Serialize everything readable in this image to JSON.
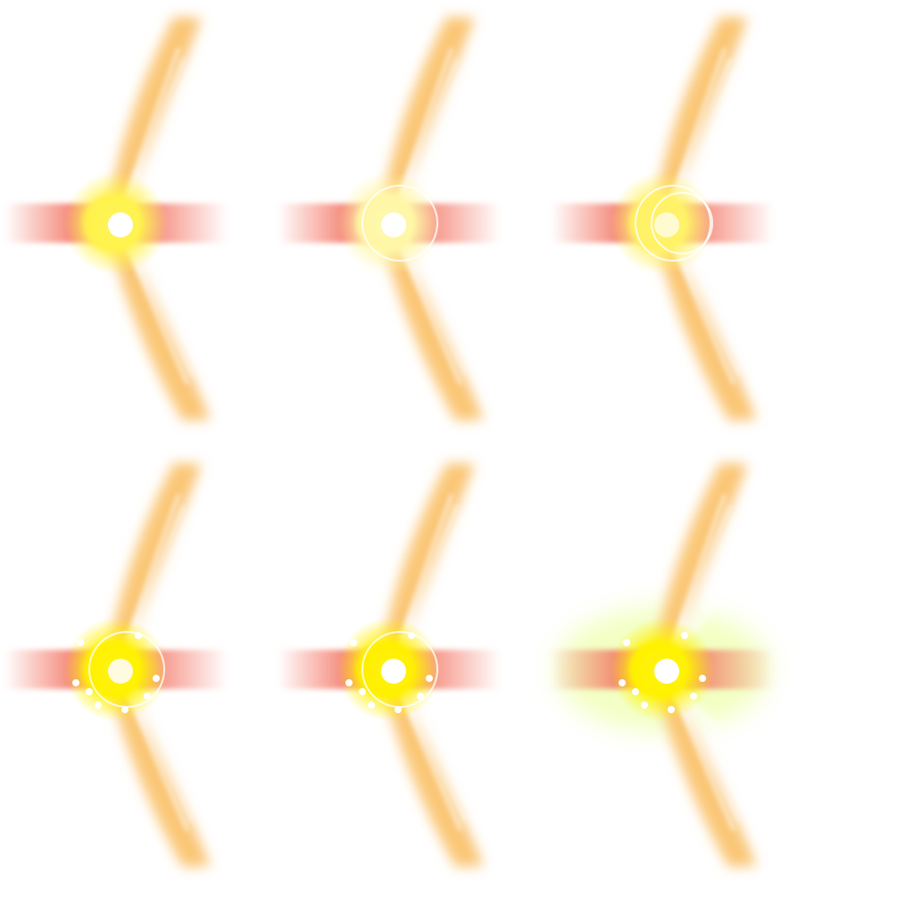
{
  "sprite_sheet": {
    "frames": [
      {
        "index": 1,
        "glow_color": "#fff34d",
        "core_color": "#ffffff",
        "ring": false,
        "sparkle": false
      },
      {
        "index": 2,
        "glow_color": "#fff7a6",
        "core_color": "#ffffff",
        "ring": true,
        "sparkle": false
      },
      {
        "index": 3,
        "glow_color": "#fff266",
        "core_color": "#fffbd0",
        "ring": true,
        "sparkle": false
      },
      {
        "index": 4,
        "glow_color": "#fff200",
        "core_color": "#fffbe0",
        "ring": true,
        "sparkle": true
      },
      {
        "index": 5,
        "glow_color": "#fff000",
        "core_color": "#ffffff",
        "ring": true,
        "sparkle": true
      },
      {
        "index": 6,
        "glow_color": "#fff200",
        "core_color": "#ffffff",
        "ring": false,
        "sparkle": true
      }
    ],
    "colors": {
      "wing_orange": "#f5a623",
      "wing_pale": "#ffe3b0",
      "streak_red": "#f26d5b",
      "halo_green": "#eaff9a"
    }
  }
}
